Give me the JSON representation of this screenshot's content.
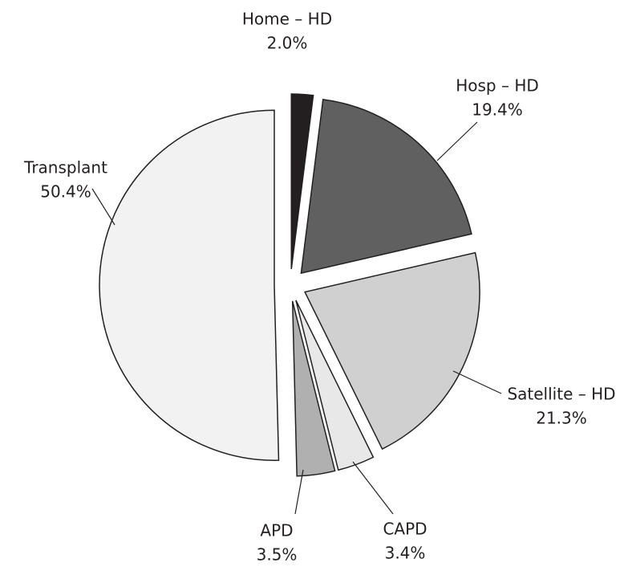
{
  "chart_data": {
    "type": "pie",
    "categories": [
      "Home – HD",
      "Hosp – HD",
      "Satellite – HD",
      "CAPD",
      "APD",
      "Transplant"
    ],
    "values": [
      2.0,
      19.4,
      21.3,
      3.4,
      3.5,
      50.4
    ],
    "value_labels": [
      "2.0%",
      "19.4%",
      "21.3%",
      "3.4%",
      "3.5%",
      "50.4%"
    ],
    "colors": [
      "#231f20",
      "#606060",
      "#d0d0d0",
      "#e8e8e8",
      "#b0b0b0",
      "#f2f2f2"
    ]
  }
}
